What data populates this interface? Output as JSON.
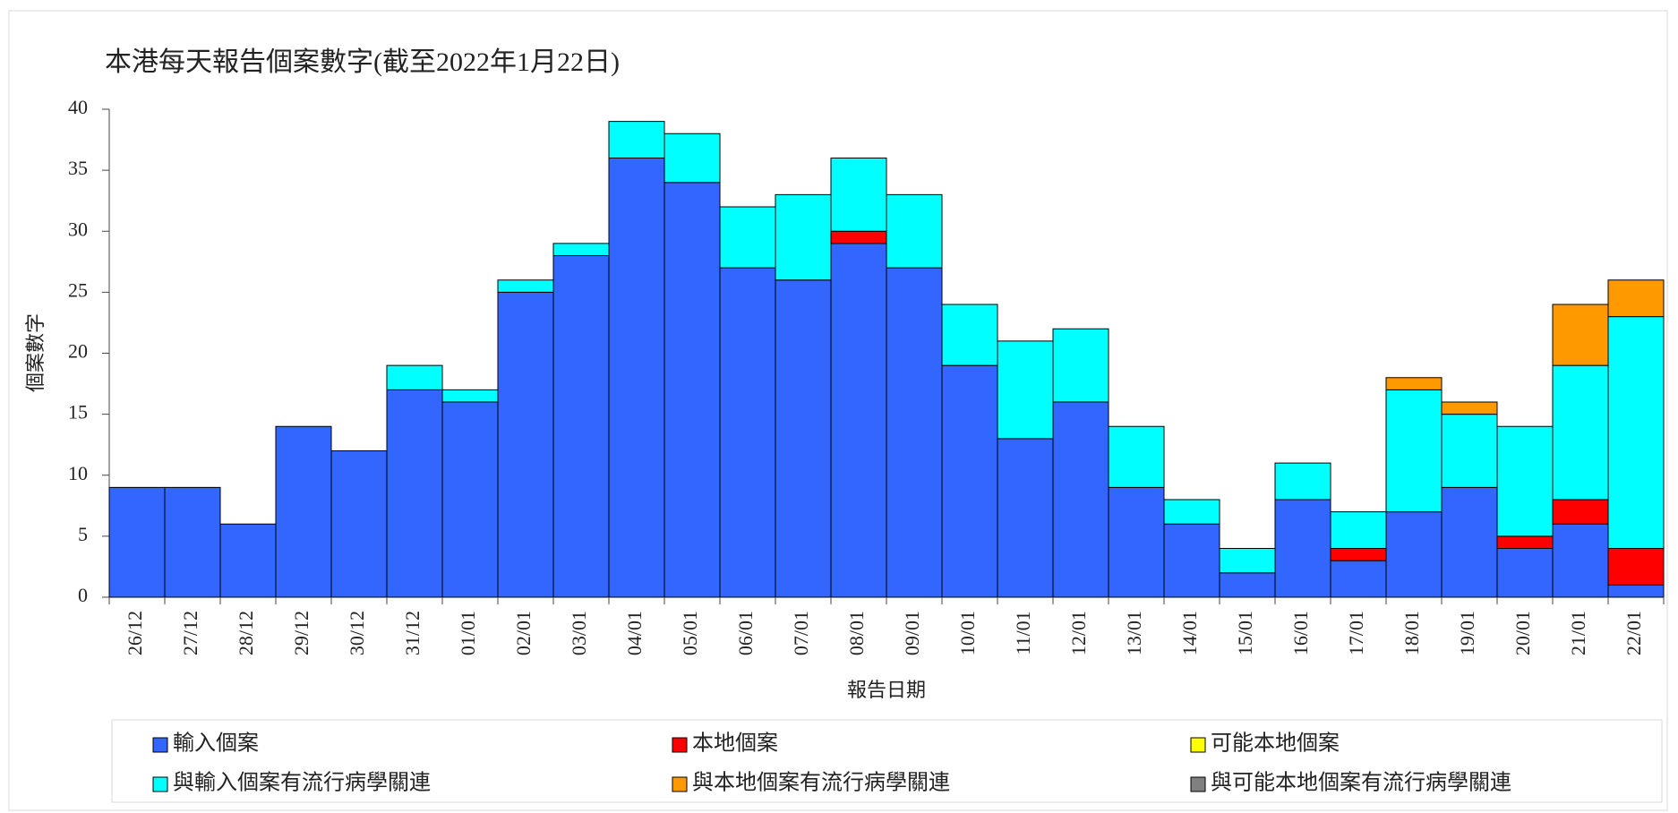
{
  "chart_data": {
    "type": "stacked-bar",
    "title": "本港每天報告個案數字(截至2022年1月22日)",
    "x_label": "報告日期",
    "y_label": "個案數字",
    "categories": [
      "26/12",
      "27/12",
      "28/12",
      "29/12",
      "30/12",
      "31/12",
      "01/01",
      "02/01",
      "03/01",
      "04/01",
      "05/01",
      "06/01",
      "07/01",
      "08/01",
      "09/01",
      "10/01",
      "11/01",
      "12/01",
      "13/01",
      "14/01",
      "15/01",
      "16/01",
      "17/01",
      "18/01",
      "19/01",
      "20/01",
      "21/01",
      "22/01"
    ],
    "series": [
      {
        "name": "輸入個案",
        "color": "#3366ff",
        "values": [
          9,
          9,
          6,
          14,
          12,
          17,
          16,
          25,
          28,
          36,
          34,
          27,
          26,
          29,
          27,
          19,
          13,
          16,
          9,
          6,
          2,
          8,
          3,
          7,
          9,
          4,
          6,
          1
        ]
      },
      {
        "name": "本地個案",
        "color": "#ff0000",
        "values": [
          0,
          0,
          0,
          0,
          0,
          0,
          0,
          0,
          0,
          0,
          0,
          0,
          0,
          1,
          0,
          0,
          0,
          0,
          0,
          0,
          0,
          0,
          1,
          0,
          0,
          1,
          2,
          3
        ]
      },
      {
        "name": "可能本地個案",
        "color": "#ffff00",
        "values": [
          0,
          0,
          0,
          0,
          0,
          0,
          0,
          0,
          0,
          0,
          0,
          0,
          0,
          0,
          0,
          0,
          0,
          0,
          0,
          0,
          0,
          0,
          0,
          0,
          0,
          0,
          0,
          0
        ]
      },
      {
        "name": "與輸入個案有流行病學關連",
        "color": "#00ffff",
        "values": [
          0,
          0,
          0,
          0,
          0,
          2,
          1,
          1,
          1,
          3,
          4,
          5,
          7,
          6,
          6,
          5,
          8,
          6,
          5,
          2,
          2,
          3,
          3,
          10,
          6,
          9,
          11,
          19
        ]
      },
      {
        "name": "與本地個案有流行病學關連",
        "color": "#ff9900",
        "values": [
          0,
          0,
          0,
          0,
          0,
          0,
          0,
          0,
          0,
          0,
          0,
          0,
          0,
          0,
          0,
          0,
          0,
          0,
          0,
          0,
          0,
          0,
          0,
          1,
          1,
          0,
          5,
          3
        ]
      },
      {
        "name": "與可能本地個案有流行病學關連",
        "color": "#808080",
        "values": [
          0,
          0,
          0,
          0,
          0,
          0,
          0,
          0,
          0,
          0,
          0,
          0,
          0,
          0,
          0,
          0,
          0,
          0,
          0,
          0,
          0,
          0,
          0,
          0,
          0,
          0,
          0,
          0
        ]
      }
    ],
    "ylim": [
      0,
      40
    ],
    "yticks": [
      0,
      5,
      10,
      15,
      20,
      25,
      30,
      35,
      40
    ]
  }
}
